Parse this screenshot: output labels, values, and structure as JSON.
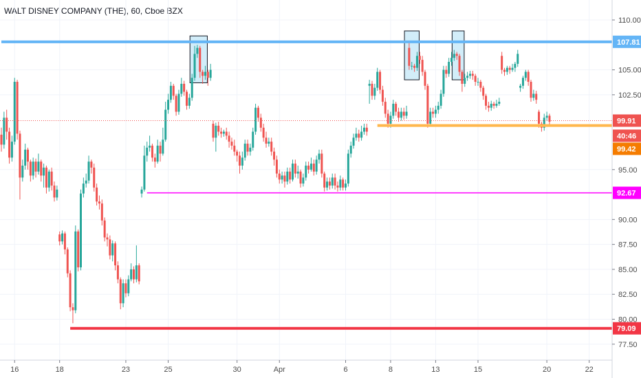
{
  "title": "WALT DISNEY COMPANY (THE), 60, Cboe BZX",
  "colors": {
    "up": "#26a69a",
    "down": "#ef5350",
    "blue_line": "#64b5f6",
    "red_line": "#f23645",
    "magenta_line": "#ff00ff",
    "orange_line": "#ffb74d",
    "dotted_line": "#ef5350",
    "price_box": "#f57c00",
    "highlight": "#bfe6f7"
  },
  "chart_data": {
    "type": "candlestick",
    "title": "WALT DISNEY COMPANY (THE), 60, Cboe BZX",
    "ylim": [
      75.9,
      112.0
    ],
    "x_ticks": [
      {
        "label": "16",
        "bar": 5
      },
      {
        "label": "18",
        "bar": 22
      },
      {
        "label": "23",
        "bar": 47
      },
      {
        "label": "25",
        "bar": 63
      },
      {
        "label": "30",
        "bar": 89
      },
      {
        "label": "Apr",
        "bar": 105
      },
      {
        "label": "6",
        "bar": 130
      },
      {
        "label": "8",
        "bar": 147
      },
      {
        "label": "13",
        "bar": 164
      },
      {
        "label": "15",
        "bar": 180
      },
      {
        "label": "20",
        "bar": 206
      },
      {
        "label": "22",
        "bar": 222
      }
    ],
    "y_ticks": [
      "110.00",
      "105.00",
      "102.50",
      "95.00",
      "90.00",
      "87.50",
      "85.00",
      "82.50",
      "80.00",
      "77.50"
    ],
    "horizontal_lines": [
      {
        "label": "107.81",
        "value": 107.81,
        "color": "#64b5f6",
        "from_bar": 0
      },
      {
        "label": "92.67",
        "value": 92.67,
        "color": "#ff00ff",
        "from_bar": 55
      },
      {
        "label": "99.42",
        "value": 99.42,
        "color": "#ffb74d",
        "from_bar": 142
      },
      {
        "label": "79.09",
        "value": 79.09,
        "color": "#f23645",
        "from_bar": 26
      }
    ],
    "current_price": {
      "label": "99.91",
      "value": 99.91
    },
    "countdown": "40:46",
    "highlight_boxes": [
      {
        "bar_from": 72,
        "bar_to": 77,
        "low": 103.7,
        "high": 108.4
      },
      {
        "bar_from": 153,
        "bar_to": 157,
        "low": 104.0,
        "high": 108.9
      },
      {
        "bar_from": 171,
        "bar_to": 174,
        "low": 104.0,
        "high": 108.9
      }
    ],
    "candles": [
      [
        98.5,
        97.5,
        99.2,
        96.8
      ],
      [
        97.5,
        100.2,
        100.8,
        97.1
      ],
      [
        100.2,
        98.8,
        101.0,
        98.0
      ],
      [
        98.8,
        96.2,
        99.2,
        95.6
      ],
      [
        96.2,
        97.8,
        98.4,
        95.8
      ],
      [
        97.8,
        103.8,
        104.2,
        97.5
      ],
      [
        103.8,
        98.6,
        104.0,
        98.0
      ],
      [
        98.6,
        94.2,
        98.9,
        92.0
      ],
      [
        94.2,
        95.4,
        96.0,
        93.8
      ],
      [
        95.4,
        97.0,
        97.6,
        95.0
      ],
      [
        97.0,
        95.8,
        97.2,
        95.0
      ],
      [
        95.8,
        94.4,
        96.0,
        93.8
      ],
      [
        94.4,
        95.8,
        96.2,
        94.0
      ],
      [
        95.8,
        94.8,
        96.1,
        94.2
      ],
      [
        94.8,
        95.8,
        96.6,
        94.5
      ],
      [
        95.8,
        94.4,
        96.0,
        93.8
      ],
      [
        94.4,
        95.2,
        95.6,
        93.2
      ],
      [
        95.2,
        93.2,
        95.4,
        92.6
      ],
      [
        93.2,
        94.8,
        95.0,
        92.8
      ],
      [
        94.8,
        93.4,
        95.2,
        92.9
      ],
      [
        93.4,
        92.2,
        93.8,
        91.8
      ],
      [
        92.2,
        93.0,
        93.4,
        91.9
      ],
      [
        88.5,
        87.8,
        88.8,
        87.4
      ],
      [
        87.8,
        88.6,
        88.9,
        87.5
      ],
      [
        88.6,
        87.0,
        88.8,
        86.5
      ],
      [
        87.0,
        84.6,
        87.2,
        84.2
      ],
      [
        84.6,
        81.2,
        84.9,
        80.8
      ],
      [
        81.2,
        80.9,
        81.6,
        79.6
      ],
      [
        80.9,
        88.8,
        89.4,
        80.6
      ],
      [
        88.8,
        85.2,
        89.0,
        84.8
      ],
      [
        85.2,
        92.6,
        93.0,
        84.9
      ],
      [
        92.6,
        93.6,
        94.2,
        92.2
      ],
      [
        93.6,
        93.9,
        94.6,
        93.2
      ],
      [
        93.9,
        95.8,
        96.4,
        93.6
      ],
      [
        95.8,
        95.2,
        96.0,
        94.6
      ],
      [
        95.2,
        93.2,
        95.6,
        92.8
      ],
      [
        93.2,
        91.8,
        93.6,
        91.4
      ],
      [
        91.8,
        91.6,
        92.4,
        91.0
      ],
      [
        91.6,
        89.9,
        92.0,
        89.4
      ],
      [
        89.9,
        88.2,
        90.2,
        87.8
      ],
      [
        88.2,
        88.0,
        88.6,
        87.3
      ],
      [
        88.0,
        86.4,
        88.4,
        86.0
      ],
      [
        86.4,
        87.6,
        87.9,
        85.8
      ],
      [
        87.6,
        85.4,
        87.8,
        84.9
      ],
      [
        85.4,
        84.0,
        85.8,
        83.6
      ],
      [
        84.0,
        81.6,
        84.2,
        81.0
      ],
      [
        81.6,
        83.6,
        84.0,
        81.2
      ],
      [
        83.6,
        82.6,
        84.0,
        82.2
      ],
      [
        82.6,
        84.0,
        84.4,
        82.3
      ],
      [
        84.0,
        85.0,
        85.6,
        83.8
      ],
      [
        85.0,
        84.0,
        85.3,
        83.6
      ],
      [
        84.0,
        85.4,
        87.4,
        83.7
      ],
      [
        85.4,
        83.8,
        85.6,
        83.5
      ],
      [
        92.6,
        93.0,
        93.3,
        92.2
      ],
      [
        93.0,
        96.4,
        97.4,
        92.8
      ],
      [
        96.4,
        97.2,
        97.8,
        95.8
      ],
      [
        97.2,
        97.4,
        98.4,
        96.8
      ],
      [
        97.4,
        96.2,
        97.6,
        95.8
      ],
      [
        96.2,
        95.8,
        96.6,
        95.2
      ],
      [
        95.8,
        97.4,
        98.0,
        95.6
      ],
      [
        97.4,
        96.6,
        97.8,
        95.8
      ],
      [
        96.6,
        98.0,
        99.2,
        96.4
      ],
      [
        98.0,
        101.0,
        101.8,
        97.8
      ],
      [
        101.0,
        102.0,
        102.6,
        100.6
      ],
      [
        102.0,
        103.4,
        103.8,
        101.7
      ],
      [
        103.4,
        102.4,
        103.6,
        102.0
      ],
      [
        102.4,
        100.8,
        102.6,
        100.4
      ],
      [
        100.8,
        102.6,
        103.0,
        100.5
      ],
      [
        102.6,
        103.6,
        104.2,
        102.3
      ],
      [
        103.6,
        102.8,
        103.9,
        102.4
      ],
      [
        102.8,
        101.4,
        103.0,
        101.0
      ],
      [
        101.4,
        102.2,
        102.6,
        101.1
      ],
      [
        102.2,
        104.2,
        104.6,
        101.9
      ],
      [
        104.2,
        106.6,
        107.4,
        103.9
      ],
      [
        106.6,
        107.2,
        107.5,
        106.2
      ],
      [
        107.2,
        104.8,
        107.4,
        104.2
      ],
      [
        104.8,
        104.4,
        105.0,
        103.6
      ],
      [
        104.4,
        104.8,
        105.4,
        104.0
      ],
      [
        104.8,
        104.2,
        105.0,
        103.4
      ],
      [
        104.2,
        105.0,
        105.6,
        103.9
      ],
      [
        99.6,
        98.2,
        99.9,
        97.8
      ],
      [
        98.2,
        99.4,
        99.7,
        96.8
      ],
      [
        99.4,
        98.8,
        99.8,
        98.4
      ],
      [
        98.8,
        98.6,
        99.2,
        98.2
      ],
      [
        98.6,
        98.8,
        99.0,
        98.3
      ],
      [
        98.8,
        98.4,
        99.2,
        98.0
      ],
      [
        98.4,
        97.8,
        98.8,
        97.2
      ],
      [
        97.8,
        97.4,
        98.2,
        97.0
      ],
      [
        97.4,
        96.8,
        98.0,
        96.4
      ],
      [
        96.8,
        96.4,
        97.0,
        95.8
      ],
      [
        96.4,
        95.4,
        96.8,
        94.6
      ],
      [
        95.4,
        96.2,
        96.8,
        95.0
      ],
      [
        96.2,
        97.6,
        98.0,
        95.9
      ],
      [
        97.6,
        96.8,
        98.0,
        96.4
      ],
      [
        96.8,
        97.2,
        97.6,
        96.4
      ],
      [
        97.2,
        98.8,
        99.2,
        96.9
      ],
      [
        98.8,
        101.2,
        101.6,
        98.5
      ],
      [
        101.2,
        100.2,
        101.4,
        99.8
      ],
      [
        100.2,
        99.2,
        100.6,
        98.8
      ],
      [
        99.2,
        98.2,
        99.6,
        97.8
      ],
      [
        98.2,
        97.6,
        98.8,
        97.2
      ],
      [
        97.6,
        97.8,
        98.2,
        97.3
      ],
      [
        97.8,
        96.8,
        98.2,
        96.4
      ],
      [
        96.8,
        96.0,
        97.2,
        95.4
      ],
      [
        96.0,
        94.6,
        96.4,
        94.2
      ],
      [
        94.6,
        94.0,
        95.0,
        93.6
      ],
      [
        94.0,
        94.4,
        94.8,
        93.6
      ],
      [
        94.4,
        93.8,
        94.8,
        93.2
      ],
      [
        93.8,
        94.8,
        95.2,
        93.5
      ],
      [
        94.8,
        94.0,
        95.2,
        93.6
      ],
      [
        94.0,
        95.6,
        96.0,
        93.8
      ],
      [
        95.6,
        94.6,
        96.0,
        94.2
      ],
      [
        94.6,
        94.8,
        95.4,
        94.1
      ],
      [
        94.8,
        93.6,
        95.0,
        93.2
      ],
      [
        93.6,
        94.2,
        94.6,
        93.3
      ],
      [
        94.2,
        95.4,
        95.8,
        93.9
      ],
      [
        95.4,
        95.0,
        95.8,
        94.6
      ],
      [
        95.0,
        95.6,
        96.2,
        94.8
      ],
      [
        95.6,
        94.8,
        96.0,
        94.4
      ],
      [
        94.8,
        96.0,
        96.4,
        94.5
      ],
      [
        96.0,
        96.6,
        97.0,
        95.6
      ],
      [
        96.6,
        94.6,
        97.0,
        94.2
      ],
      [
        94.6,
        93.2,
        94.8,
        92.8
      ],
      [
        93.2,
        93.8,
        94.2,
        92.9
      ],
      [
        93.8,
        93.4,
        94.2,
        93.0
      ],
      [
        93.4,
        94.2,
        94.6,
        93.1
      ],
      [
        94.2,
        93.4,
        94.6,
        93.0
      ],
      [
        93.4,
        93.2,
        93.8,
        92.8
      ],
      [
        93.2,
        94.0,
        94.4,
        92.9
      ],
      [
        94.0,
        93.2,
        94.2,
        92.9
      ],
      [
        93.2,
        93.6,
        94.0,
        92.9
      ],
      [
        93.6,
        96.6,
        97.0,
        93.3
      ],
      [
        96.6,
        97.4,
        97.8,
        96.2
      ],
      [
        97.4,
        98.2,
        98.6,
        97.1
      ],
      [
        98.2,
        98.6,
        99.2,
        97.9
      ],
      [
        98.6,
        98.2,
        99.0,
        97.8
      ],
      [
        98.2,
        98.8,
        99.4,
        97.9
      ],
      [
        98.8,
        99.2,
        99.6,
        98.5
      ],
      [
        99.2,
        98.8,
        99.6,
        98.4
      ],
      [
        103.4,
        103.6,
        104.0,
        101.6
      ],
      [
        103.6,
        102.4,
        103.9,
        102.0
      ],
      [
        102.4,
        103.2,
        103.6,
        102.0
      ],
      [
        103.2,
        104.8,
        105.2,
        102.9
      ],
      [
        104.8,
        103.0,
        105.0,
        102.6
      ],
      [
        103.0,
        101.8,
        103.4,
        101.4
      ],
      [
        101.8,
        100.6,
        102.2,
        100.2
      ],
      [
        100.6,
        99.6,
        101.0,
        99.2
      ],
      [
        99.6,
        100.4,
        100.8,
        99.2
      ],
      [
        100.4,
        101.6,
        102.0,
        100.1
      ],
      [
        101.6,
        100.8,
        101.8,
        100.4
      ],
      [
        100.8,
        100.2,
        101.2,
        99.8
      ],
      [
        100.2,
        100.8,
        101.2,
        99.9
      ],
      [
        100.8,
        100.4,
        101.2,
        100.0
      ],
      [
        100.4,
        100.8,
        101.4,
        100.1
      ],
      [
        107.2,
        105.4,
        107.8,
        105.0
      ],
      [
        105.4,
        105.4,
        105.8,
        105.0
      ],
      [
        105.4,
        105.2,
        105.6,
        104.8
      ],
      [
        105.2,
        106.4,
        106.8,
        104.9
      ],
      [
        106.4,
        106.0,
        106.8,
        105.6
      ],
      [
        106.0,
        104.8,
        106.4,
        104.4
      ],
      [
        104.8,
        103.4,
        105.0,
        103.0
      ],
      [
        103.4,
        99.6,
        103.6,
        99.2
      ],
      [
        99.6,
        100.8,
        101.2,
        99.3
      ],
      [
        100.8,
        100.6,
        101.2,
        100.2
      ],
      [
        100.6,
        101.0,
        101.4,
        100.2
      ],
      [
        101.0,
        101.4,
        101.8,
        100.6
      ],
      [
        101.4,
        102.6,
        103.0,
        101.1
      ],
      [
        102.6,
        105.0,
        105.4,
        102.3
      ],
      [
        105.0,
        104.6,
        105.4,
        104.2
      ],
      [
        104.6,
        105.8,
        106.2,
        104.3
      ],
      [
        105.8,
        106.2,
        106.8,
        105.4
      ],
      [
        106.2,
        106.6,
        107.0,
        105.9
      ],
      [
        106.6,
        106.4,
        106.8,
        106.0
      ],
      [
        106.4,
        104.8,
        106.6,
        104.4
      ],
      [
        104.8,
        103.6,
        105.0,
        102.8
      ],
      [
        103.6,
        104.2,
        104.6,
        103.3
      ],
      [
        104.2,
        104.4,
        104.8,
        103.9
      ],
      [
        104.4,
        104.6,
        104.9,
        104.1
      ],
      [
        104.6,
        104.4,
        104.9,
        104.0
      ],
      [
        104.4,
        103.8,
        104.6,
        103.4
      ],
      [
        103.8,
        103.8,
        104.2,
        103.4
      ],
      [
        103.8,
        103.2,
        104.0,
        102.8
      ],
      [
        103.2,
        102.4,
        103.4,
        102.0
      ],
      [
        102.4,
        101.4,
        102.6,
        101.0
      ],
      [
        101.4,
        101.2,
        101.8,
        100.8
      ],
      [
        101.2,
        101.6,
        101.9,
        100.9
      ],
      [
        101.6,
        101.4,
        101.8,
        101.1
      ],
      [
        101.4,
        101.6,
        102.0,
        101.2
      ],
      [
        101.6,
        101.8,
        102.2,
        101.4
      ],
      [
        106.4,
        105.0,
        106.8,
        104.6
      ],
      [
        105.0,
        104.8,
        105.2,
        104.4
      ],
      [
        104.8,
        105.2,
        105.4,
        104.5
      ],
      [
        105.2,
        105.0,
        105.4,
        104.6
      ],
      [
        105.0,
        105.2,
        105.6,
        104.8
      ],
      [
        105.2,
        105.6,
        105.8,
        104.8
      ],
      [
        105.6,
        106.6,
        107.0,
        105.3
      ],
      [
        103.2,
        103.4,
        103.6,
        102.8
      ],
      [
        103.4,
        104.2,
        104.4,
        103.1
      ],
      [
        104.2,
        104.8,
        105.0,
        103.9
      ],
      [
        104.8,
        103.8,
        105.0,
        103.4
      ],
      [
        103.8,
        102.2,
        104.0,
        101.8
      ],
      [
        102.2,
        102.6,
        103.0,
        101.9
      ],
      [
        102.6,
        102.0,
        102.9,
        101.6
      ],
      [
        100.8,
        99.6,
        101.0,
        99.2
      ],
      [
        99.6,
        99.2,
        99.8,
        98.8
      ],
      [
        99.2,
        100.2,
        100.6,
        98.9
      ],
      [
        100.2,
        100.4,
        100.8,
        99.9
      ],
      [
        100.4,
        99.8,
        100.6,
        99.4
      ]
    ]
  }
}
